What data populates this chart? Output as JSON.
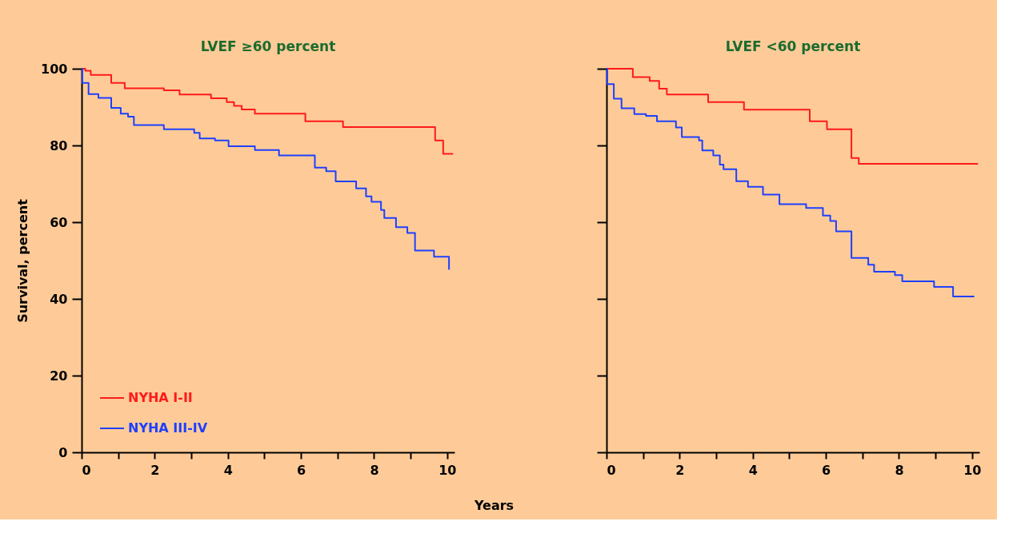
{
  "chart_data": [
    {
      "type": "step",
      "title": "LVEF ≥60 percent",
      "xlabel": "Years",
      "ylabel": "Survival, percent",
      "xlim": [
        0,
        10.2
      ],
      "ylim": [
        0,
        100
      ],
      "xticks": [
        0,
        {
          "value": 1,
          "label": null
        },
        2,
        {
          "value": 3,
          "label": null
        },
        4,
        {
          "value": 5,
          "label": null
        },
        6,
        {
          "value": 7,
          "label": null
        },
        8,
        {
          "value": 9,
          "label": null
        },
        10
      ],
      "yticks": [
        0,
        20,
        40,
        60,
        80,
        100
      ],
      "grid": false,
      "legend": "bottom left",
      "marker": "none",
      "line_style": "solid",
      "series": [
        {
          "name": "NYHA I-II",
          "color": "#ff1a1a",
          "x": [
            0,
            0.1,
            0.25,
            0.81,
            1.18,
            2.25,
            2.68,
            3.54,
            3.97,
            4.17,
            4.38,
            4.74,
            6.12,
            7.15,
            9.67,
            9.89,
            10.16
          ],
          "values": [
            100,
            99.5,
            98.4,
            96.3,
            94.9,
            94.4,
            93.3,
            92.3,
            91.3,
            90.3,
            89.4,
            88.3,
            86.3,
            84.8,
            81.3,
            77.8,
            77.8
          ]
        },
        {
          "name": "NYHA III-IV",
          "color": "#1e40ff",
          "x": [
            0,
            0.02,
            0.19,
            0.46,
            0.81,
            1.07,
            1.27,
            1.43,
            2.25,
            3.08,
            3.23,
            3.65,
            4.02,
            4.74,
            5.4,
            6.38,
            6.69,
            6.95,
            7.51,
            7.78,
            7.93,
            8.19,
            8.28,
            8.6,
            8.91,
            9.12,
            9.64,
            10.05
          ],
          "values": [
            100,
            96.3,
            93.4,
            92.4,
            89.8,
            88.3,
            87.5,
            85.3,
            84.2,
            83.3,
            81.8,
            81.3,
            79.8,
            78.8,
            77.4,
            74.2,
            73.3,
            70.6,
            68.8,
            66.7,
            65.3,
            63.2,
            61.1,
            58.7,
            57.2,
            52.6,
            51.0,
            47.6
          ]
        }
      ]
    },
    {
      "type": "step",
      "title": "LVEF <60 percent",
      "xlim": [
        0,
        10.2
      ],
      "ylim": [
        0,
        100
      ],
      "xticks": [
        0,
        {
          "value": 1,
          "label": null
        },
        2,
        {
          "value": 3,
          "label": null
        },
        4,
        {
          "value": 5,
          "label": null
        },
        6,
        {
          "value": 7,
          "label": null
        },
        8,
        {
          "value": 9,
          "label": null
        },
        10
      ],
      "yticks": [
        {
          "value": 0,
          "label": null
        },
        {
          "value": 20,
          "label": null
        },
        {
          "value": 40,
          "label": null
        },
        {
          "value": 60,
          "label": null
        },
        {
          "value": 80,
          "label": null
        },
        {
          "value": 100,
          "label": null
        }
      ],
      "tick_labels": "x",
      "grid": false,
      "marker": "none",
      "line_style": "solid",
      "series": [
        {
          "color": "#ff1a1a",
          "x": [
            0,
            0.72,
            1.18,
            1.44,
            1.65,
            2.78,
            3.76,
            5.56,
            6.03,
            6.7,
            6.9,
            10.16
          ],
          "values": [
            100,
            97.8,
            96.8,
            94.8,
            93.3,
            91.3,
            89.3,
            86.3,
            84.2,
            76.7,
            75.2,
            75.2
          ]
        },
        {
          "color": "#1e40ff",
          "x": [
            0,
            0.02,
            0.2,
            0.41,
            0.76,
            1.08,
            1.38,
            1.9,
            2.06,
            2.53,
            2.62,
            2.92,
            3.1,
            3.2,
            3.55,
            3.87,
            4.28,
            4.73,
            5.46,
            5.92,
            6.12,
            6.28,
            6.7,
            7.16,
            7.32,
            7.89,
            8.09,
            8.96,
            9.48,
            10.06
          ],
          "values": [
            100,
            96.0,
            92.2,
            89.7,
            88.2,
            87.7,
            86.3,
            84.7,
            82.2,
            81.3,
            78.7,
            77.4,
            75.0,
            73.8,
            70.7,
            69.2,
            67.2,
            64.7,
            63.7,
            61.7,
            60.3,
            57.6,
            50.7,
            48.9,
            47.1,
            46.2,
            44.6,
            43.1,
            40.6,
            40.6
          ]
        }
      ]
    }
  ]
}
